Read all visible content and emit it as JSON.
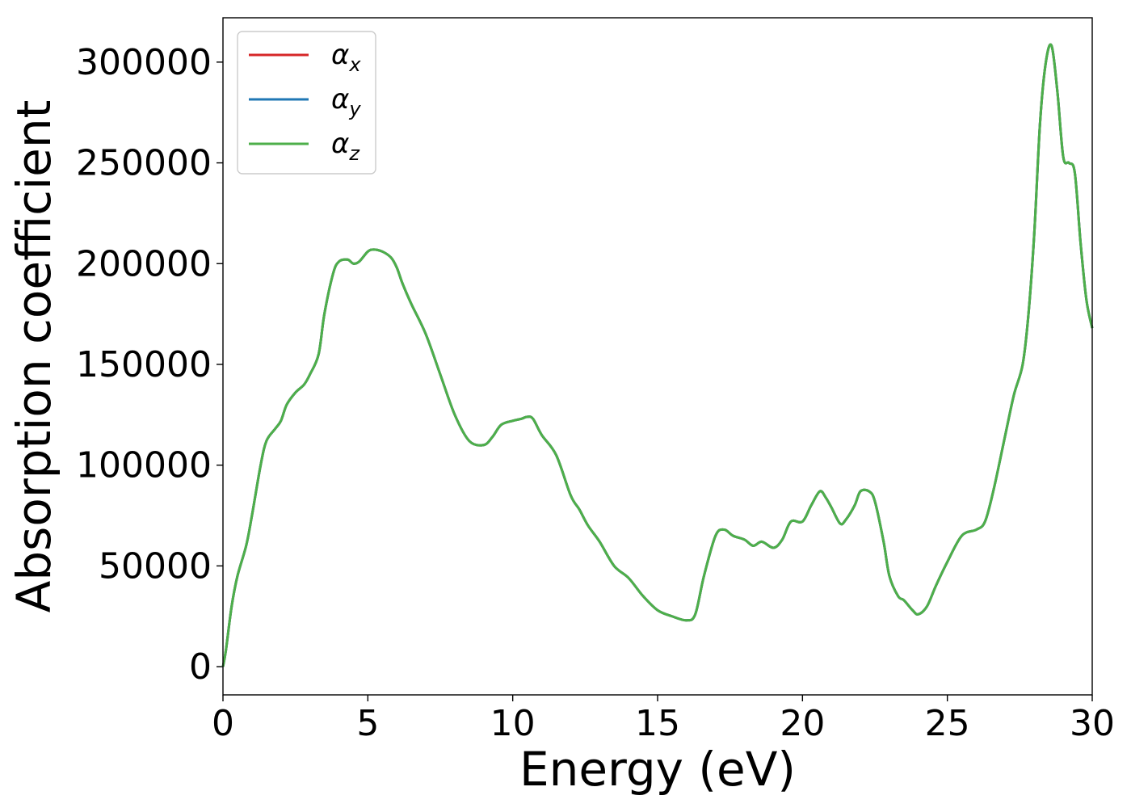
{
  "chart_data": {
    "type": "line",
    "title": "",
    "xlabel": "Energy (eV)",
    "ylabel": "Absorption coefficient",
    "xlim": [
      0,
      30
    ],
    "ylim": [
      -14000,
      322000
    ],
    "xticks": [
      0,
      5,
      10,
      15,
      20,
      25,
      30
    ],
    "yticks": [
      0,
      50000,
      100000,
      150000,
      200000,
      250000,
      300000
    ],
    "xtick_labels": [
      "0",
      "5",
      "10",
      "15",
      "20",
      "25",
      "30"
    ],
    "ytick_labels": [
      "0",
      "50000",
      "100000",
      "150000",
      "200000",
      "250000",
      "300000"
    ],
    "grid": false,
    "legend_position": "top-left",
    "series": [
      {
        "name": "α",
        "subscript": "x",
        "color": "#d62728"
      },
      {
        "name": "α",
        "subscript": "y",
        "color": "#1f77b4"
      },
      {
        "name": "α",
        "subscript": "z",
        "color": "#4daf4a"
      }
    ],
    "x": [
      0,
      0.1,
      0.3,
      0.5,
      0.8,
      1.0,
      1.3,
      1.5,
      1.8,
      2.0,
      2.2,
      2.5,
      2.8,
      3.0,
      3.3,
      3.5,
      3.8,
      4.0,
      4.3,
      4.5,
      4.7,
      5.0,
      5.2,
      5.5,
      5.8,
      6.0,
      6.2,
      6.5,
      7.0,
      7.5,
      8.0,
      8.5,
      9.0,
      9.3,
      9.6,
      10.0,
      10.3,
      10.5,
      10.7,
      11.0,
      11.5,
      12.0,
      12.3,
      12.6,
      13.0,
      13.5,
      14.0,
      14.5,
      15.0,
      15.5,
      16.0,
      16.3,
      16.6,
      17.0,
      17.3,
      17.6,
      18.0,
      18.3,
      18.6,
      19.0,
      19.3,
      19.6,
      20.0,
      20.3,
      20.6,
      20.8,
      21.0,
      21.3,
      21.5,
      21.8,
      22.0,
      22.3,
      22.5,
      22.8,
      23.0,
      23.3,
      23.5,
      23.8,
      24.0,
      24.3,
      24.6,
      25.0,
      25.5,
      26.0,
      26.3,
      26.6,
      27.0,
      27.3,
      27.6,
      27.8,
      28.0,
      28.2,
      28.4,
      28.6,
      28.8,
      29.0,
      29.2,
      29.4,
      29.6,
      29.8,
      30.0
    ],
    "y": [
      0,
      8000,
      30000,
      45000,
      60000,
      75000,
      100000,
      112000,
      118000,
      122000,
      130000,
      136000,
      140000,
      145000,
      155000,
      175000,
      195000,
      201000,
      202000,
      200000,
      201000,
      206000,
      207000,
      206000,
      203000,
      198000,
      190000,
      180000,
      165000,
      145000,
      125000,
      112000,
      110000,
      114000,
      120000,
      122000,
      123000,
      124000,
      123000,
      115000,
      105000,
      85000,
      78000,
      70000,
      62000,
      50000,
      44000,
      35000,
      28000,
      25000,
      23000,
      26000,
      45000,
      65000,
      68000,
      65000,
      63000,
      60000,
      62000,
      59000,
      63000,
      72000,
      72000,
      80000,
      87000,
      84000,
      79000,
      71000,
      73000,
      80000,
      87000,
      87000,
      82000,
      62000,
      45000,
      35000,
      33000,
      28000,
      26000,
      30000,
      40000,
      52000,
      65000,
      68000,
      72000,
      88000,
      115000,
      135000,
      150000,
      175000,
      215000,
      270000,
      300000,
      308000,
      285000,
      253000,
      250000,
      245000,
      210000,
      182000,
      168000
    ]
  }
}
